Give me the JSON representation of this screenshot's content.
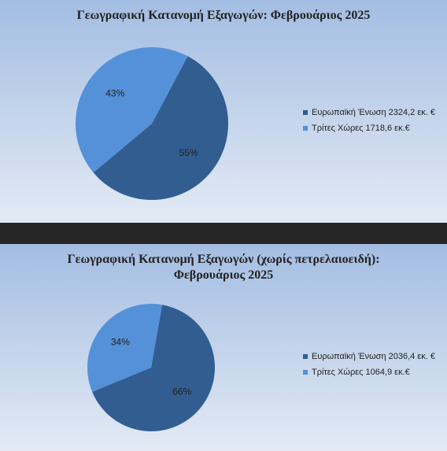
{
  "chart_data": [
    {
      "type": "pie",
      "title": "Γεωγραφική Κατανομή Εξαγωγών: Φεβρουάριος 2025",
      "categories": [
        "Ευρωπαϊκή Ένωση 2324,2 εκ. €",
        "Τρίτες Χώρες 1718,6 εκ.€"
      ],
      "values": [
        55,
        43
      ],
      "value_labels": [
        "55%",
        "43%"
      ],
      "colors": [
        "#325d91",
        "#5591d8"
      ]
    },
    {
      "type": "pie",
      "title": "Γεωγραφική Κατανομή Εξαγωγών (χωρίς πετρελαιοειδή):\nΦεβρουάριος 2025",
      "categories": [
        "Ευρωπαϊκή Ένωση 2036,4 εκ. €",
        "Τρίτες Χώρες 1064,9 εκ.€"
      ],
      "values": [
        66,
        34
      ],
      "value_labels": [
        "66%",
        "34%"
      ],
      "colors": [
        "#325d91",
        "#5591d8"
      ]
    }
  ]
}
